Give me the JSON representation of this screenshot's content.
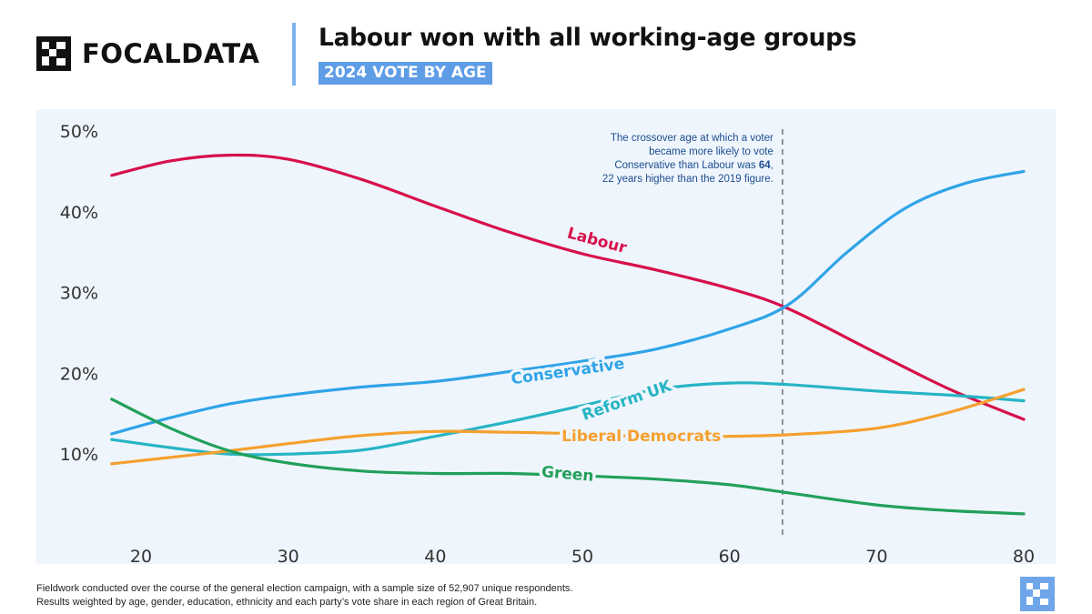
{
  "brand": {
    "name": "FOCALDATA",
    "mark_icon": "focaldata-logo-icon"
  },
  "header": {
    "title": "Labour won with all working-age groups",
    "subtitle": "2024 VOTE BY AGE"
  },
  "chart_data": {
    "type": "line",
    "xlim": [
      18,
      80
    ],
    "ylim": [
      0,
      50
    ],
    "x_ticks": [
      "20",
      "30",
      "40",
      "50",
      "60",
      "70",
      "80"
    ],
    "y_ticks": [
      "10%",
      "20%",
      "30%",
      "40%",
      "50%"
    ],
    "grid": false,
    "legend": "inline labels",
    "series": [
      {
        "name": "Labour",
        "color": "#d7104a",
        "points": [
          [
            18,
            44.5
          ],
          [
            22,
            46.3
          ],
          [
            26,
            47
          ],
          [
            30,
            46.5
          ],
          [
            35,
            44
          ],
          [
            40,
            40.7
          ],
          [
            45,
            37.5
          ],
          [
            50,
            34.8
          ],
          [
            55,
            32.8
          ],
          [
            60,
            30.5
          ],
          [
            64,
            28
          ],
          [
            70,
            22.5
          ],
          [
            75,
            18
          ],
          [
            80,
            14.3
          ]
        ]
      },
      {
        "name": "Conservative",
        "color": "#2fa4e7",
        "points": [
          [
            18,
            12.5
          ],
          [
            22,
            14.5
          ],
          [
            26,
            16.2
          ],
          [
            30,
            17.3
          ],
          [
            35,
            18.3
          ],
          [
            40,
            19
          ],
          [
            45,
            20.2
          ],
          [
            50,
            21.5
          ],
          [
            55,
            23
          ],
          [
            60,
            25.5
          ],
          [
            64,
            28.5
          ],
          [
            68,
            35
          ],
          [
            72,
            40.5
          ],
          [
            76,
            43.5
          ],
          [
            80,
            45
          ]
        ]
      },
      {
        "name": "Reform UK",
        "color": "#27b4c4",
        "points": [
          [
            18,
            11.8
          ],
          [
            22,
            10.8
          ],
          [
            26,
            10
          ],
          [
            30,
            10
          ],
          [
            35,
            10.5
          ],
          [
            40,
            12.2
          ],
          [
            45,
            14
          ],
          [
            50,
            16
          ],
          [
            55,
            18
          ],
          [
            60,
            18.8
          ],
          [
            64,
            18.6
          ],
          [
            70,
            17.8
          ],
          [
            75,
            17.3
          ],
          [
            80,
            16.6
          ]
        ]
      },
      {
        "name": "Liberal Democrats",
        "color": "#f5a02e",
        "points": [
          [
            18,
            8.8
          ],
          [
            22,
            9.6
          ],
          [
            26,
            10.4
          ],
          [
            30,
            11.3
          ],
          [
            35,
            12.3
          ],
          [
            40,
            12.8
          ],
          [
            45,
            12.7
          ],
          [
            50,
            12.5
          ],
          [
            55,
            12.1
          ],
          [
            60,
            12.2
          ],
          [
            64,
            12.4
          ],
          [
            70,
            13.2
          ],
          [
            75,
            15.2
          ],
          [
            80,
            18
          ]
        ]
      },
      {
        "name": "Green",
        "color": "#22a05a",
        "points": [
          [
            18,
            16.8
          ],
          [
            22,
            13.2
          ],
          [
            26,
            10.4
          ],
          [
            30,
            8.9
          ],
          [
            35,
            7.9
          ],
          [
            40,
            7.6
          ],
          [
            45,
            7.6
          ],
          [
            50,
            7.3
          ],
          [
            55,
            6.9
          ],
          [
            60,
            6.2
          ],
          [
            64,
            5.2
          ],
          [
            70,
            3.7
          ],
          [
            75,
            3
          ],
          [
            80,
            2.6
          ]
        ]
      }
    ],
    "series_labels": [
      {
        "name": "Labour",
        "text": "Labour",
        "x": 51,
        "y": 36.5,
        "angle": 15
      },
      {
        "name": "Conservative",
        "text": "Conservative",
        "x": 49,
        "y": 20.3,
        "angle": -8
      },
      {
        "name": "Reform UK",
        "text": "Reform UK",
        "x": 53,
        "y": 16.7,
        "angle": -19
      },
      {
        "name": "Liberal Democrats",
        "text": "Liberal Democrats",
        "x": 54,
        "y": 12.3,
        "angle": 0
      },
      {
        "name": "Green",
        "text": "Green",
        "x": 49,
        "y": 7.6,
        "angle": 5
      }
    ],
    "crossover": {
      "x": 63.6,
      "annotation": [
        "The crossover age at which a voter",
        "became more likely to vote",
        "Conservative than Labour was ",
        "64",
        ",",
        "22 years higher than the 2019 figure."
      ]
    },
    "colors": {
      "background": "#eef5fc",
      "tick_text": "#333333",
      "divider": "#888888"
    }
  },
  "footnote": [
    "Fieldwork conducted over the course of the general election campaign, with a sample size of 52,907 unique respondents.",
    "Results weighted by age, gender, education, ethnicity and each party’s vote share in each region of Great Britain."
  ],
  "corner_icon": "focaldata-badge-icon"
}
